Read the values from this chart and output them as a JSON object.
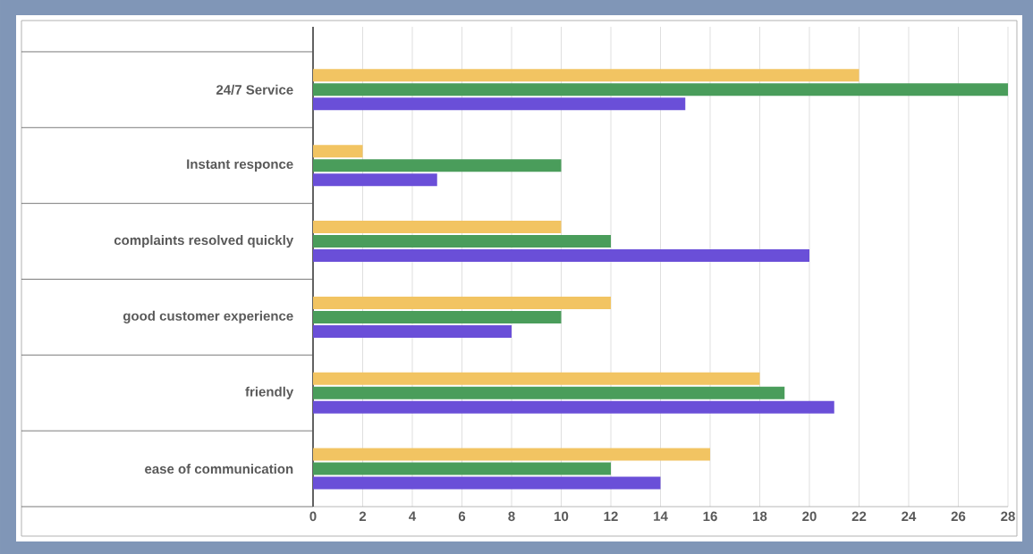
{
  "chart_data": {
    "type": "bar",
    "orientation": "horizontal",
    "categories": [
      "24/7 Service",
      "Instant responce",
      "complaints resolved quickly",
      "good customer experience",
      "friendly",
      "ease of communication"
    ],
    "series": [
      {
        "color": "#f2c462",
        "values": [
          22,
          2,
          10,
          12,
          18,
          16
        ]
      },
      {
        "color": "#4a9d5b",
        "values": [
          28,
          10,
          12,
          10,
          19,
          12
        ]
      },
      {
        "color": "#6a4fd8",
        "values": [
          15,
          5,
          20,
          8,
          21,
          14
        ]
      }
    ],
    "xlim": [
      0,
      28
    ],
    "xticks": [
      0,
      2,
      4,
      6,
      8,
      10,
      12,
      14,
      16,
      18,
      20,
      22,
      24,
      26,
      28
    ],
    "grid": "x"
  }
}
